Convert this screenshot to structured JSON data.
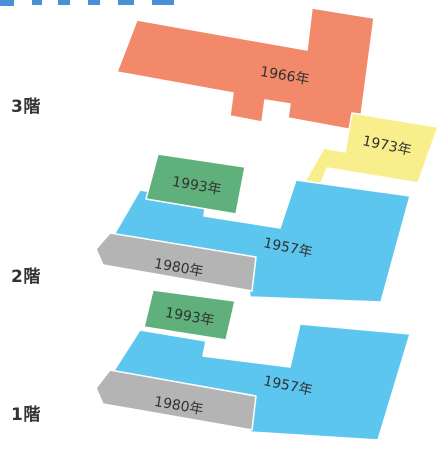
{
  "header": {
    "title": "",
    "color": "#4a90d9"
  },
  "floors": [
    {
      "id": "3f",
      "label": "3階"
    },
    {
      "id": "2f",
      "label": "2階"
    },
    {
      "id": "1f",
      "label": "1階"
    }
  ],
  "blocks": {
    "f3_1966": {
      "year": "1966年",
      "color": "#f2896b"
    },
    "f2_1973": {
      "year": "1973年",
      "color": "#f8ef8c"
    },
    "f2_1993": {
      "year": "1993年",
      "color": "#5fb07a"
    },
    "f2_1957": {
      "year": "1957年",
      "color": "#5cc6ef"
    },
    "f2_1980": {
      "year": "1980年",
      "color": "#b4b4b4"
    },
    "f1_1993": {
      "year": "1993年",
      "color": "#5fb07a"
    },
    "f1_1957": {
      "year": "1957年",
      "color": "#5cc6ef"
    },
    "f1_1980": {
      "year": "1980年",
      "color": "#b4b4b4"
    }
  }
}
